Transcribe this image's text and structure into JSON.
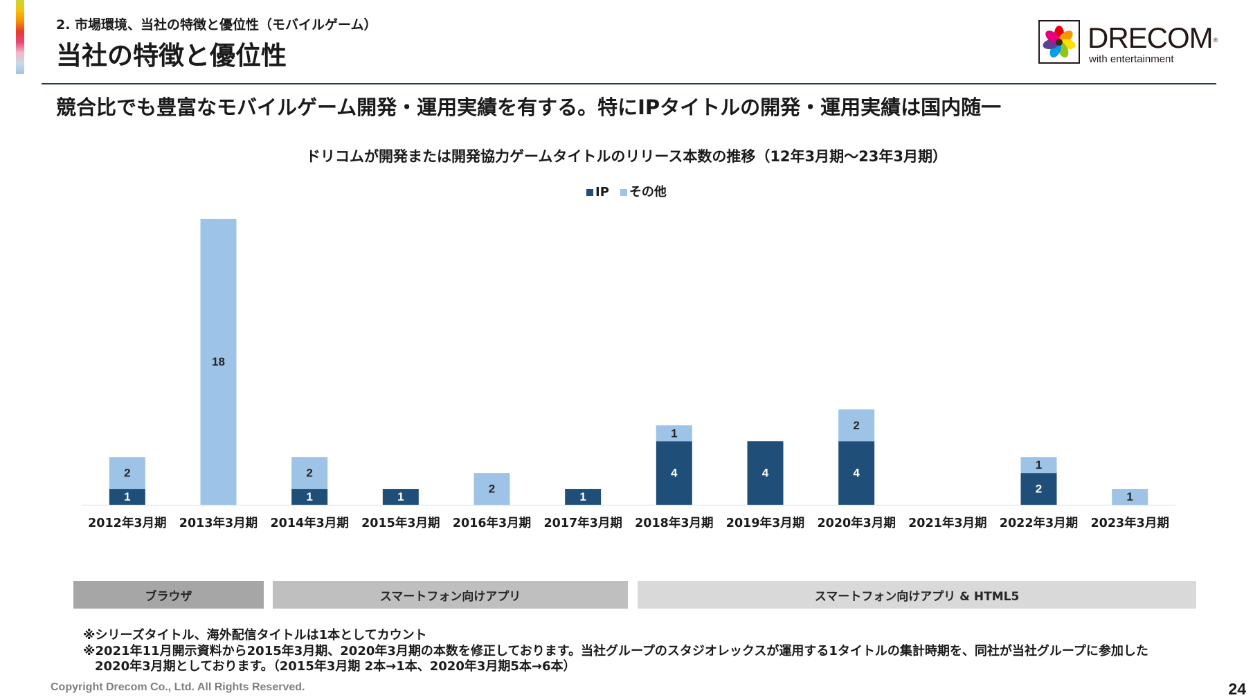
{
  "theme": {
    "header_rule_color": "#1f3864",
    "accent_strip_colors": [
      "#c7d633",
      "#f4c20d",
      "#f39200",
      "#e8382f",
      "#e4497a",
      "#f2b8c9",
      "#c8d9ea",
      "#9ec3e3"
    ]
  },
  "header": {
    "section_label": "2. 市場環境、当社の特徴と優位性（モバイルゲーム）",
    "title": "当社の特徴と優位性"
  },
  "logo": {
    "wordmark": "DRECOM",
    "registered_mark": "®",
    "tagline": "with entertainment",
    "petal_colors": [
      "#e60012",
      "#f39800",
      "#ffe100",
      "#8fc31f",
      "#00a0e9",
      "#5b3f98",
      "#e4007f"
    ]
  },
  "headline": "競合比でも豊富なモバイルゲーム開発・運用実績を有する。特にIPタイトルの開発・運用実績は国内随一",
  "chart_data": {
    "type": "bar",
    "stacked": true,
    "title": "ドリコムが開発または開発協力ゲームタイトルのリリース本数の推移（12年3月期～23年3月期）",
    "xlabel": "",
    "ylabel": "",
    "ylim": [
      0,
      18
    ],
    "grid": false,
    "y_axis_visible": false,
    "legend_position": "top-center",
    "data_labels": true,
    "categories": [
      "2012年3月期",
      "2013年3月期",
      "2014年3月期",
      "2015年3月期",
      "2016年3月期",
      "2017年3月期",
      "2018年3月期",
      "2019年3月期",
      "2020年3月期",
      "2021年3月期",
      "2022年3月期",
      "2023年3月期"
    ],
    "series": [
      {
        "name": "IP",
        "color": "#1f4e79",
        "label_color": "#ffffff",
        "values": [
          1,
          0,
          1,
          1,
          0,
          1,
          4,
          4,
          4,
          0,
          2,
          0
        ]
      },
      {
        "name": "その他",
        "color": "#9dc3e6",
        "label_color": "#262626",
        "values": [
          2,
          18,
          2,
          0,
          2,
          0,
          1,
          0,
          2,
          0,
          1,
          1
        ]
      }
    ]
  },
  "platform_bands": [
    {
      "label": "ブラウザ",
      "color": "#a6a6a6"
    },
    {
      "label": "スマートフォン向けアプリ",
      "color": "#bfbfbf"
    },
    {
      "label": "スマートフォン向けアプリ & HTML5",
      "color": "#d9d9d9"
    }
  ],
  "notes": [
    "※シリーズタイトル、海外配信タイトルは1本としてカウント",
    "※2021年11月開示資料から2015年3月期、2020年3月期の本数を修正しております。当社グループのスタジオレックスが運用する1タイトルの集計時期を、同社が当社グループに参加した",
    "2020年3月期としております。（2015年3月期 2本→1本、2020年3月期5本→6本）"
  ],
  "footer": {
    "copyright": "Copyright Drecom Co., Ltd. All Rights Reserved.",
    "page_number": "24"
  }
}
